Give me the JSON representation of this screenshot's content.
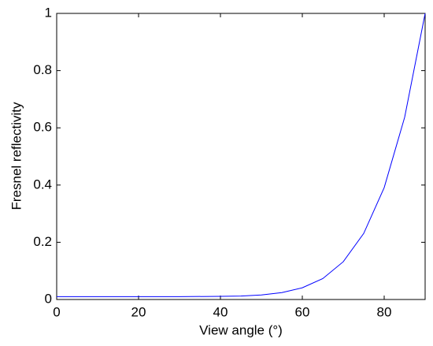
{
  "chart_data": {
    "type": "line",
    "x_label": "View angle (°)",
    "y_label": "Fresnel reflectivity",
    "x": [
      0,
      10,
      20,
      30,
      40,
      45,
      50,
      55,
      60,
      65,
      70,
      75,
      80,
      85,
      90
    ],
    "series": [
      {
        "color": "#0000ff",
        "values": [
          0.01,
          0.01,
          0.01,
          0.01,
          0.011,
          0.012,
          0.016,
          0.024,
          0.041,
          0.073,
          0.132,
          0.231,
          0.391,
          0.637,
          1.0
        ]
      }
    ],
    "xlim": [
      0,
      90
    ],
    "xticks": [
      0,
      20,
      40,
      60,
      80
    ],
    "ylim": [
      0,
      1
    ],
    "yticks": [
      0,
      0.2,
      0.4,
      0.6,
      0.8,
      1
    ],
    "grid": false
  }
}
